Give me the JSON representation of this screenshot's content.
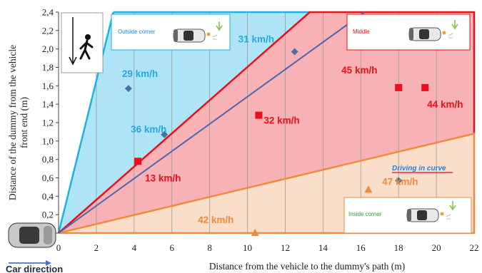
{
  "chart_data": {
    "type": "scatter",
    "xlabel": "Distance from the vehicle to the dummy's path (m)",
    "ylabel_lines": [
      "Distance of the dummy from the vehicle",
      "front end (m)"
    ],
    "xlim": [
      0,
      22
    ],
    "ylim": [
      0,
      2.4
    ],
    "x_ticks": [
      "0",
      "2",
      "4",
      "6",
      "8",
      "10",
      "12",
      "14",
      "16",
      "18",
      "20",
      "22"
    ],
    "y_ticks": [
      "0",
      "0,2",
      "0,4",
      "0,6",
      "0,8",
      "1,0",
      "1,2",
      "1,4",
      "1,6",
      "1,8",
      "2,0",
      "2,2",
      "2,4"
    ],
    "grid": "vertical",
    "colors": {
      "outside": "#1ab3e6",
      "middle": "#e8101a",
      "inside": "#f08a3c",
      "blue_marker": "#4a6fa5",
      "blue_line": "#4b66b0"
    },
    "regions": [
      {
        "name": "Outside corner",
        "color": "#1ab3e6",
        "polygon": [
          [
            0,
            0
          ],
          [
            2.9,
            2.4
          ],
          [
            13.3,
            2.4
          ]
        ]
      },
      {
        "name": "Middle",
        "color": "#e8101a",
        "polygon": [
          [
            0,
            0
          ],
          [
            13.3,
            2.4
          ],
          [
            22,
            2.4
          ],
          [
            22,
            1.08
          ]
        ]
      },
      {
        "name": "Inside corner",
        "color": "#f08a3c",
        "polygon": [
          [
            0,
            0
          ],
          [
            22,
            1.08
          ],
          [
            22,
            0
          ]
        ]
      }
    ],
    "trend_line": {
      "from": [
        0,
        0
      ],
      "to": [
        16.2,
        2.4
      ]
    },
    "series": [
      {
        "marker": "diamond",
        "color": "#4a6fa5",
        "points": [
          {
            "x": 3.7,
            "y": 1.57,
            "label": "29 km/h",
            "label_color": "#29a8e0"
          },
          {
            "x": 5.6,
            "y": 1.07,
            "label": "36 km/h",
            "label_color": "#29a8e0"
          },
          {
            "x": 12.5,
            "y": 1.97,
            "label": "31 km/h",
            "label_color": "#29a8e0"
          },
          {
            "x": 18.0,
            "y": 0.57,
            "label": "47 km/h",
            "label_color": "#f08a3c"
          }
        ]
      },
      {
        "marker": "square",
        "color": "#e8101a",
        "points": [
          {
            "x": 4.2,
            "y": 0.78,
            "label": "13 km/h",
            "label_color": "#e8101a"
          },
          {
            "x": 10.6,
            "y": 1.28,
            "label": "32 km/h",
            "label_color": "#e8101a"
          },
          {
            "x": 18.0,
            "y": 1.58,
            "label": "45 km/h",
            "label_color": "#e8101a"
          },
          {
            "x": 19.4,
            "y": 1.58,
            "label": "44 km/h",
            "label_color": "#e8101a"
          }
        ]
      },
      {
        "marker": "triangle",
        "color": "#f08a3c",
        "points": [
          {
            "x": 10.4,
            "y": 0.0,
            "label": "42 km/h",
            "label_color": "#f08a3c"
          },
          {
            "x": 16.4,
            "y": 0.47,
            "label": "",
            "label_color": "#f08a3c"
          }
        ]
      }
    ],
    "annotations": {
      "outside_box": "Outside corner",
      "middle_box": "Middle",
      "inside_box": "Inside corner",
      "curve_label": "Driving in curve",
      "car_direction": "Car direction"
    }
  }
}
